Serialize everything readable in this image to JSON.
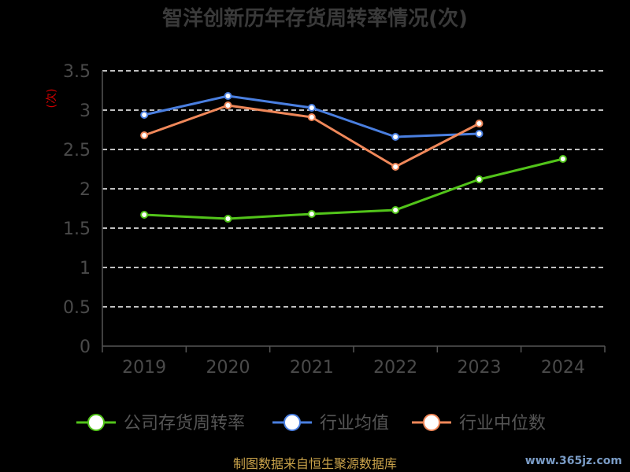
{
  "chart_data": {
    "type": "line",
    "title": "智洋创新历年存货周转率情况(次)",
    "ylabel": "(次)",
    "categories": [
      "2019",
      "2020",
      "2021",
      "2022",
      "2023",
      "2024"
    ],
    "ylim": [
      0,
      3.5
    ],
    "yticks": [
      "0",
      "0.5",
      "1",
      "1.5",
      "2",
      "2.5",
      "3",
      "3.5"
    ],
    "grid": true,
    "legend_position": "bottom",
    "series": [
      {
        "name": "公司存货周转率",
        "color": "#52c41a",
        "values": [
          1.67,
          1.62,
          1.68,
          1.73,
          2.12,
          2.38
        ]
      },
      {
        "name": "行业均值",
        "color": "#4a7fe0",
        "values": [
          2.94,
          3.18,
          3.03,
          2.66,
          2.7,
          null
        ]
      },
      {
        "name": "行业中位数",
        "color": "#f0885a",
        "values": [
          2.68,
          3.06,
          2.91,
          2.28,
          2.83,
          null
        ]
      }
    ]
  },
  "footer": {
    "source": "制图数据来自恒生聚源数据库",
    "watermark": "www.365jz.com"
  }
}
